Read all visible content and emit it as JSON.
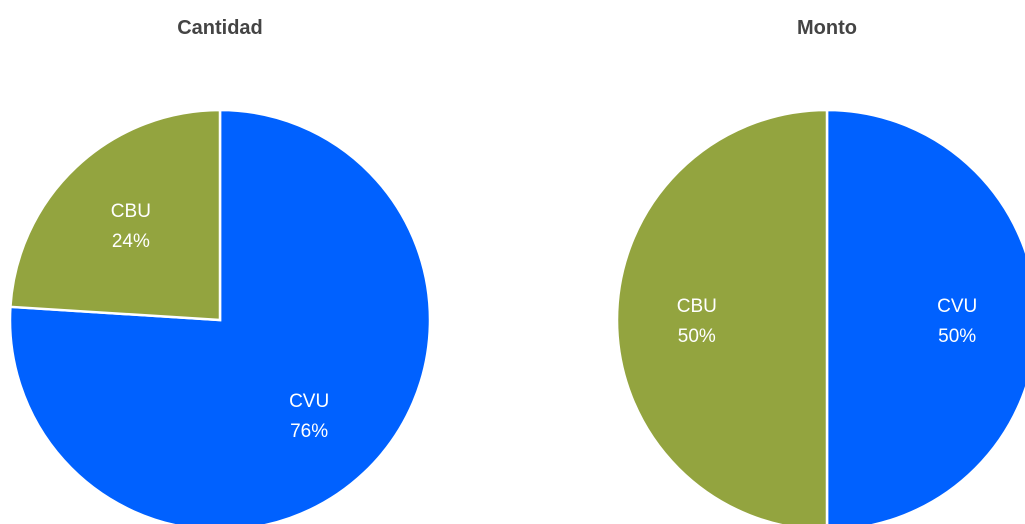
{
  "chart_data": [
    {
      "type": "pie",
      "title": "Cantidad",
      "categories": [
        "CVU",
        "CBU"
      ],
      "values": [
        76,
        24
      ],
      "value_labels": [
        "76%",
        "24%"
      ],
      "colors": [
        "#0061ff",
        "#93a43f"
      ]
    },
    {
      "type": "pie",
      "title": "Monto",
      "categories": [
        "CVU",
        "CBU"
      ],
      "values": [
        50,
        50
      ],
      "value_labels": [
        "50%",
        "50%"
      ],
      "colors": [
        "#0061ff",
        "#93a43f"
      ]
    }
  ]
}
